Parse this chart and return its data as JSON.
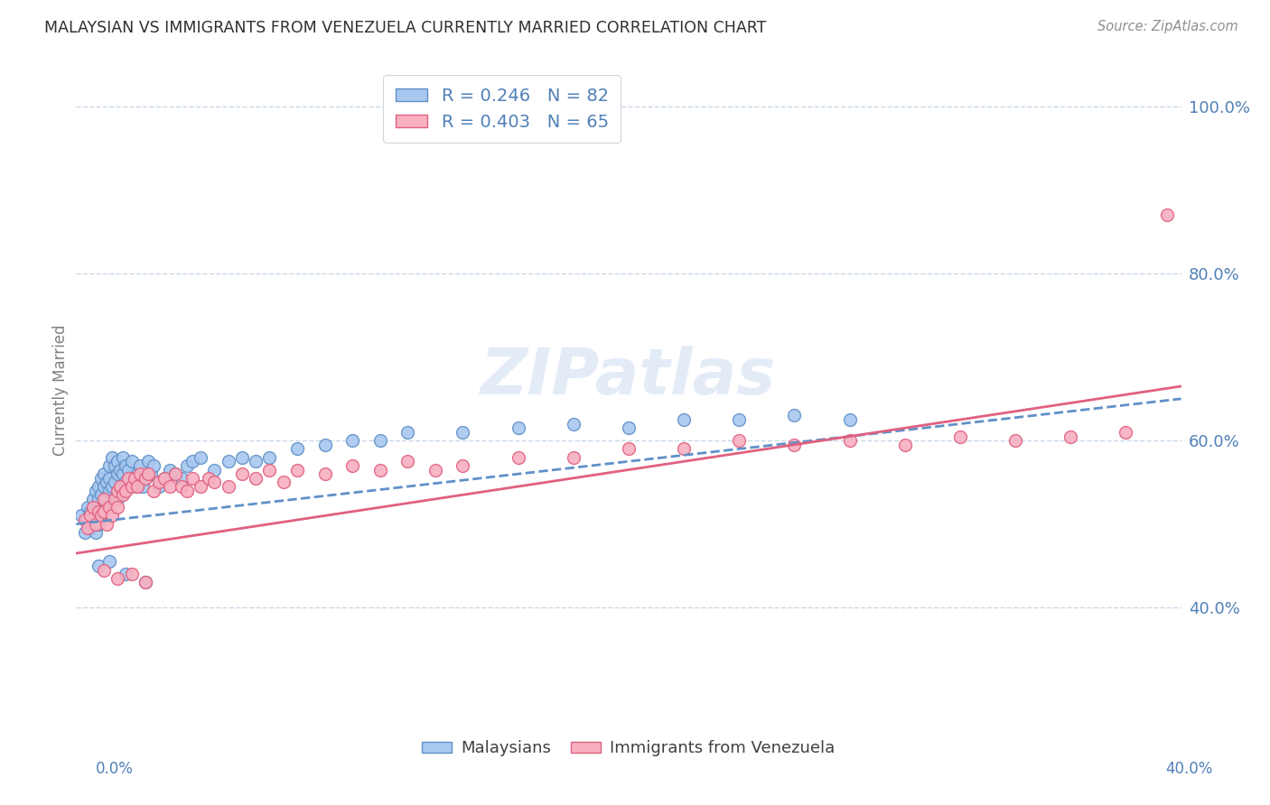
{
  "title": "MALAYSIAN VS IMMIGRANTS FROM VENEZUELA CURRENTLY MARRIED CORRELATION CHART",
  "source": "Source: ZipAtlas.com",
  "ylabel": "Currently Married",
  "ytick_labels": [
    "40.0%",
    "60.0%",
    "80.0%",
    "100.0%"
  ],
  "ytick_values": [
    0.4,
    0.6,
    0.8,
    1.0
  ],
  "xlim": [
    0.0,
    0.4
  ],
  "ylim": [
    0.26,
    1.06
  ],
  "legend_text_blue": "R = 0.246   N = 82",
  "legend_text_pink": "R = 0.403   N = 65",
  "malaysian_color": "#A8C8F0",
  "venezuela_color": "#F8B0C0",
  "malaysian_edge": "#6090C8",
  "venezuela_edge": "#E06080",
  "trend_blue_color": "#6090C8",
  "trend_pink_color": "#E06080",
  "background_color": "#FFFFFF",
  "grid_color": "#C8D8E8",
  "title_color": "#303030",
  "axis_label_color": "#5080B8",
  "trend_blue_intercept": 0.5,
  "trend_blue_slope": 0.375,
  "trend_pink_intercept": 0.465,
  "trend_pink_slope": 0.5,
  "malaysian_x": [
    0.002,
    0.003,
    0.004,
    0.004,
    0.005,
    0.005,
    0.005,
    0.006,
    0.006,
    0.007,
    0.007,
    0.007,
    0.008,
    0.008,
    0.008,
    0.009,
    0.009,
    0.009,
    0.01,
    0.01,
    0.01,
    0.011,
    0.011,
    0.012,
    0.012,
    0.012,
    0.013,
    0.013,
    0.014,
    0.014,
    0.015,
    0.015,
    0.015,
    0.016,
    0.016,
    0.017,
    0.017,
    0.018,
    0.018,
    0.019,
    0.019,
    0.02,
    0.02,
    0.021,
    0.022,
    0.022,
    0.023,
    0.024,
    0.025,
    0.026,
    0.027,
    0.028,
    0.03,
    0.032,
    0.034,
    0.036,
    0.038,
    0.04,
    0.042,
    0.045,
    0.05,
    0.055,
    0.06,
    0.065,
    0.07,
    0.08,
    0.09,
    0.1,
    0.11,
    0.12,
    0.14,
    0.16,
    0.18,
    0.2,
    0.22,
    0.24,
    0.26,
    0.28,
    0.008,
    0.012,
    0.018,
    0.025
  ],
  "malaysian_y": [
    0.51,
    0.49,
    0.505,
    0.52,
    0.495,
    0.515,
    0.5,
    0.52,
    0.53,
    0.51,
    0.54,
    0.49,
    0.53,
    0.545,
    0.5,
    0.535,
    0.555,
    0.515,
    0.545,
    0.52,
    0.56,
    0.53,
    0.55,
    0.54,
    0.555,
    0.57,
    0.545,
    0.58,
    0.55,
    0.57,
    0.56,
    0.575,
    0.53,
    0.565,
    0.545,
    0.56,
    0.58,
    0.55,
    0.57,
    0.545,
    0.565,
    0.55,
    0.575,
    0.555,
    0.56,
    0.545,
    0.57,
    0.545,
    0.555,
    0.575,
    0.56,
    0.57,
    0.545,
    0.555,
    0.565,
    0.56,
    0.555,
    0.57,
    0.575,
    0.58,
    0.565,
    0.575,
    0.58,
    0.575,
    0.58,
    0.59,
    0.595,
    0.6,
    0.6,
    0.61,
    0.61,
    0.615,
    0.62,
    0.615,
    0.625,
    0.625,
    0.63,
    0.625,
    0.45,
    0.455,
    0.44,
    0.43
  ],
  "venezuela_x": [
    0.003,
    0.004,
    0.005,
    0.006,
    0.007,
    0.008,
    0.009,
    0.01,
    0.01,
    0.011,
    0.012,
    0.013,
    0.014,
    0.015,
    0.015,
    0.016,
    0.017,
    0.018,
    0.019,
    0.02,
    0.021,
    0.022,
    0.023,
    0.025,
    0.026,
    0.028,
    0.03,
    0.032,
    0.034,
    0.036,
    0.038,
    0.04,
    0.042,
    0.045,
    0.048,
    0.05,
    0.055,
    0.06,
    0.065,
    0.07,
    0.075,
    0.08,
    0.09,
    0.1,
    0.11,
    0.12,
    0.13,
    0.14,
    0.16,
    0.18,
    0.2,
    0.22,
    0.24,
    0.26,
    0.28,
    0.3,
    0.32,
    0.34,
    0.36,
    0.38,
    0.01,
    0.015,
    0.02,
    0.025,
    0.395
  ],
  "venezuela_y": [
    0.505,
    0.495,
    0.51,
    0.52,
    0.5,
    0.515,
    0.51,
    0.53,
    0.515,
    0.5,
    0.52,
    0.51,
    0.53,
    0.54,
    0.52,
    0.545,
    0.535,
    0.54,
    0.555,
    0.545,
    0.555,
    0.545,
    0.56,
    0.555,
    0.56,
    0.54,
    0.55,
    0.555,
    0.545,
    0.56,
    0.545,
    0.54,
    0.555,
    0.545,
    0.555,
    0.55,
    0.545,
    0.56,
    0.555,
    0.565,
    0.55,
    0.565,
    0.56,
    0.57,
    0.565,
    0.575,
    0.565,
    0.57,
    0.58,
    0.58,
    0.59,
    0.59,
    0.6,
    0.595,
    0.6,
    0.595,
    0.605,
    0.6,
    0.605,
    0.61,
    0.445,
    0.435,
    0.44,
    0.43,
    0.87
  ],
  "figsize": [
    14.06,
    8.92
  ],
  "dpi": 100
}
